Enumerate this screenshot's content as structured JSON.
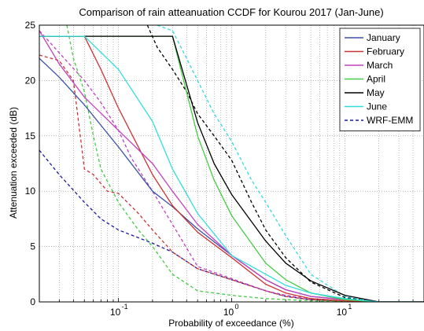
{
  "chart_data": {
    "type": "line",
    "title": "Comparison of rain atteanuation CCDF for Kourou 2017 (Jan-June)",
    "xlabel": "Probability of exceedance (%)",
    "ylabel": "Attenuation exceeded (dB)",
    "xscale": "log",
    "xlim": [
      0.02,
      50
    ],
    "ylim": [
      0,
      25
    ],
    "x_ticks": [
      {
        "v": 0.1,
        "base": "10",
        "exp": "-1"
      },
      {
        "v": 1,
        "base": "10",
        "exp": "0"
      },
      {
        "v": 10,
        "base": "10",
        "exp": "1"
      }
    ],
    "y_ticks": [
      "0",
      "5",
      "10",
      "15",
      "20",
      "25"
    ],
    "grid": true,
    "legend_position": "top-right",
    "series": [
      {
        "name": "January",
        "color": "#3b4fa8",
        "dash": "solid",
        "points": [
          [
            0.02,
            22
          ],
          [
            0.03,
            20.3
          ],
          [
            0.05,
            17.8
          ],
          [
            0.1,
            14
          ],
          [
            0.2,
            10
          ],
          [
            0.3,
            8.6
          ],
          [
            0.5,
            6.6
          ],
          [
            1,
            4.2
          ],
          [
            2,
            2
          ],
          [
            3,
            1.1
          ],
          [
            5,
            0.5
          ],
          [
            10,
            0.2
          ],
          [
            20,
            0
          ],
          [
            50,
            0
          ]
        ]
      },
      {
        "name": "February",
        "color": "#cc3333",
        "dash": "solid",
        "points": [
          [
            0.02,
            24
          ],
          [
            0.05,
            24
          ],
          [
            0.07,
            21
          ],
          [
            0.1,
            17.5
          ],
          [
            0.2,
            11.5
          ],
          [
            0.3,
            8.7
          ],
          [
            0.5,
            6.3
          ],
          [
            1,
            4
          ],
          [
            2,
            1.6
          ],
          [
            3,
            0.8
          ],
          [
            5,
            0.3
          ],
          [
            10,
            0.1
          ],
          [
            20,
            0
          ],
          [
            50,
            0
          ]
        ]
      },
      {
        "name": "March",
        "color": "#c040c0",
        "dash": "solid",
        "points": [
          [
            0.02,
            24.5
          ],
          [
            0.03,
            21.5
          ],
          [
            0.05,
            18.5
          ],
          [
            0.1,
            15.5
          ],
          [
            0.2,
            12.5
          ],
          [
            0.3,
            10
          ],
          [
            0.5,
            7
          ],
          [
            1,
            4.2
          ],
          [
            2,
            2
          ],
          [
            3,
            1.1
          ],
          [
            5,
            0.5
          ],
          [
            10,
            0.2
          ],
          [
            20,
            0
          ],
          [
            50,
            0
          ]
        ]
      },
      {
        "name": "April",
        "color": "#44cc44",
        "dash": "solid",
        "points": [
          [
            0.02,
            24
          ],
          [
            0.3,
            24
          ],
          [
            0.5,
            15
          ],
          [
            0.7,
            11
          ],
          [
            1,
            7.8
          ],
          [
            2,
            3.5
          ],
          [
            3,
            2
          ],
          [
            5,
            0.8
          ],
          [
            10,
            0.2
          ],
          [
            20,
            0
          ],
          [
            50,
            0
          ]
        ]
      },
      {
        "name": "May",
        "color": "#000000",
        "dash": "solid",
        "points": [
          [
            0.02,
            24
          ],
          [
            0.3,
            24
          ],
          [
            0.5,
            16.2
          ],
          [
            0.7,
            12.5
          ],
          [
            1,
            9.7
          ],
          [
            2,
            5.5
          ],
          [
            3,
            3.5
          ],
          [
            5,
            1.9
          ],
          [
            10,
            0.6
          ],
          [
            20,
            0
          ],
          [
            50,
            0
          ]
        ]
      },
      {
        "name": "June",
        "color": "#33dddd",
        "dash": "solid",
        "points": [
          [
            0.02,
            24
          ],
          [
            0.05,
            24
          ],
          [
            0.1,
            21
          ],
          [
            0.2,
            16.3
          ],
          [
            0.3,
            12
          ],
          [
            0.5,
            8
          ],
          [
            1,
            4.2
          ],
          [
            2,
            2.5
          ],
          [
            3,
            1.5
          ],
          [
            5,
            0.8
          ],
          [
            10,
            0.3
          ],
          [
            20,
            0
          ],
          [
            50,
            0
          ]
        ]
      },
      {
        "name": "WRF-EMM",
        "color": "#1a1aa0",
        "dash": "4,3",
        "points": [
          [
            0.02,
            13.7
          ],
          [
            0.03,
            11.5
          ],
          [
            0.05,
            9
          ],
          [
            0.07,
            7.5
          ],
          [
            0.1,
            6.5
          ],
          [
            0.2,
            5.3
          ],
          [
            0.3,
            4.5
          ],
          [
            0.5,
            3
          ],
          [
            1,
            2
          ],
          [
            2,
            1
          ],
          [
            3,
            0.5
          ],
          [
            5,
            0.2
          ],
          [
            10,
            0.05
          ],
          [
            20,
            0
          ],
          [
            50,
            0
          ]
        ]
      },
      {
        "color": "#cc3333",
        "dash": "4,3",
        "points": [
          [
            0.02,
            22.3
          ],
          [
            0.03,
            21.8
          ],
          [
            0.04,
            20
          ],
          [
            0.05,
            12
          ],
          [
            0.06,
            11.5
          ],
          [
            0.08,
            10
          ],
          [
            0.1,
            9.8
          ],
          [
            0.15,
            8
          ],
          [
            0.2,
            6.5
          ],
          [
            0.3,
            4.5
          ],
          [
            0.5,
            3
          ],
          [
            1,
            2
          ],
          [
            2,
            1
          ],
          [
            3,
            0.5
          ],
          [
            5,
            0.2
          ],
          [
            10,
            0.05
          ],
          [
            20,
            0
          ],
          [
            50,
            0
          ]
        ]
      },
      {
        "color": "#c040c0",
        "dash": "4,3",
        "points": [
          [
            0.02,
            24.5
          ],
          [
            0.03,
            22.5
          ],
          [
            0.05,
            20
          ],
          [
            0.07,
            18
          ],
          [
            0.1,
            15.5
          ],
          [
            0.13,
            13
          ],
          [
            0.2,
            10
          ],
          [
            0.3,
            7
          ],
          [
            0.5,
            3.2
          ],
          [
            1,
            2.1
          ],
          [
            2,
            1
          ],
          [
            3,
            0.6
          ],
          [
            5,
            0.3
          ],
          [
            10,
            0.1
          ],
          [
            20,
            0
          ],
          [
            50,
            0
          ]
        ]
      },
      {
        "color": "#44cc44",
        "dash": "4,3",
        "points": [
          [
            0.035,
            25
          ],
          [
            0.04,
            22
          ],
          [
            0.05,
            19
          ],
          [
            0.06,
            15
          ],
          [
            0.07,
            12
          ],
          [
            0.1,
            9
          ],
          [
            0.15,
            6.5
          ],
          [
            0.2,
            5
          ],
          [
            0.3,
            2.5
          ],
          [
            0.5,
            1
          ],
          [
            1,
            0.6
          ],
          [
            2,
            0.3
          ],
          [
            5,
            0.1
          ],
          [
            10,
            0.05
          ],
          [
            20,
            0
          ],
          [
            50,
            0
          ]
        ]
      },
      {
        "color": "#000000",
        "dash": "4,3",
        "points": [
          [
            0.18,
            25
          ],
          [
            0.22,
            23
          ],
          [
            0.3,
            21
          ],
          [
            0.4,
            19
          ],
          [
            0.5,
            17
          ],
          [
            0.7,
            15
          ],
          [
            1,
            12.8
          ],
          [
            1.5,
            9
          ],
          [
            2,
            6.5
          ],
          [
            3,
            4
          ],
          [
            5,
            1.8
          ],
          [
            10,
            0.4
          ],
          [
            20,
            0
          ],
          [
            50,
            0
          ]
        ]
      },
      {
        "color": "#33dddd",
        "dash": "4,3",
        "points": [
          [
            0.22,
            25
          ],
          [
            0.3,
            24.5
          ],
          [
            0.4,
            22
          ],
          [
            0.5,
            20
          ],
          [
            0.7,
            17
          ],
          [
            1,
            14.5
          ],
          [
            1.5,
            11
          ],
          [
            2,
            9
          ],
          [
            3,
            6
          ],
          [
            5,
            2.5
          ],
          [
            10,
            0.5
          ],
          [
            20,
            0
          ],
          [
            50,
            0
          ]
        ]
      }
    ]
  }
}
